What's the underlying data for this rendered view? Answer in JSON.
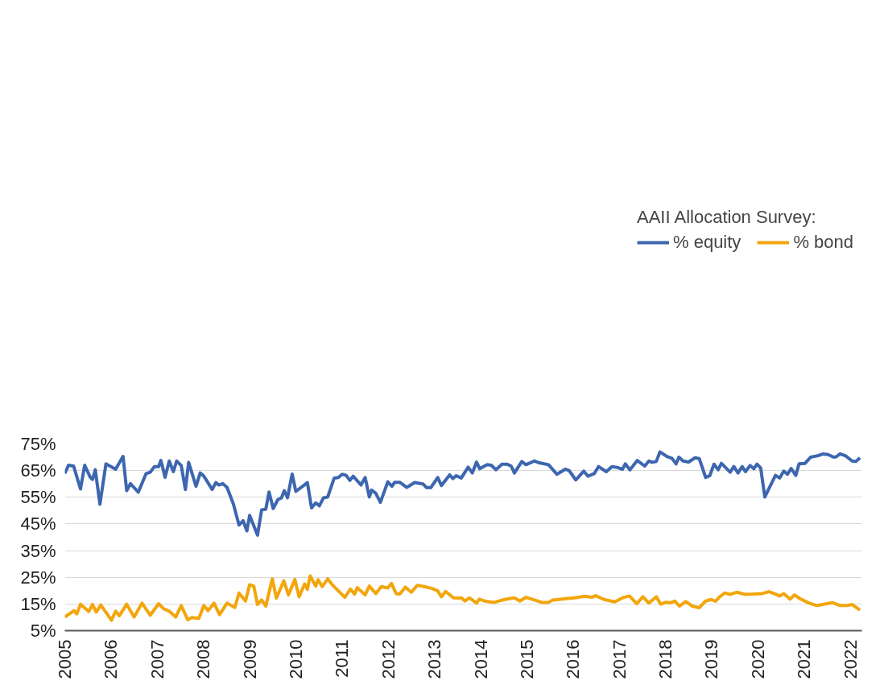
{
  "chart_data": {
    "type": "line",
    "legend_title": "AAII Allocation Survey:",
    "legend": "top",
    "grid": "y",
    "marker": "none",
    "line_style": "solid",
    "xlim": [
      2005,
      2022.25
    ],
    "xticks": [
      2005,
      2006,
      2007,
      2008,
      2009,
      2010,
      2011,
      2012,
      2013,
      2014,
      2015,
      2016,
      2017,
      2018,
      2019,
      2020,
      2021,
      2022
    ],
    "ylim": [
      5,
      75
    ],
    "yticks": [
      {
        "value": 5,
        "label": "5%"
      },
      {
        "value": 15,
        "label": "15%"
      },
      {
        "value": 25,
        "label": "25%"
      },
      {
        "value": 35,
        "label": "35%"
      },
      {
        "value": 45,
        "label": "45%"
      },
      {
        "value": 55,
        "label": "55%"
      },
      {
        "value": 65,
        "label": "65%"
      },
      {
        "value": 75,
        "label": "75%"
      }
    ],
    "series": [
      {
        "name": "% equity",
        "color": "#3d66b0",
        "x": [
          2005.0,
          2005.08,
          2005.19,
          2005.34,
          2005.43,
          2005.55,
          2005.6,
          2005.66,
          2005.76,
          2005.89,
          2006.1,
          2006.26,
          2006.34,
          2006.42,
          2006.59,
          2006.76,
          2006.85,
          2006.94,
          2007.03,
          2007.08,
          2007.17,
          2007.26,
          2007.35,
          2007.42,
          2007.52,
          2007.61,
          2007.68,
          2007.84,
          2007.93,
          2008.01,
          2008.19,
          2008.27,
          2008.33,
          2008.42,
          2008.51,
          2008.65,
          2008.77,
          2008.86,
          2008.94,
          2009.0,
          2009.17,
          2009.26,
          2009.35,
          2009.42,
          2009.51,
          2009.61,
          2009.69,
          2009.75,
          2009.82,
          2009.92,
          2010.0,
          2010.25,
          2010.34,
          2010.43,
          2010.51,
          2010.6,
          2010.69,
          2010.83,
          2010.92,
          2011.0,
          2011.09,
          2011.17,
          2011.24,
          2011.41,
          2011.5,
          2011.59,
          2011.64,
          2011.73,
          2011.83,
          2011.99,
          2012.08,
          2012.14,
          2012.25,
          2012.4,
          2012.57,
          2012.75,
          2012.83,
          2012.92,
          2013.07,
          2013.15,
          2013.33,
          2013.4,
          2013.47,
          2013.58,
          2013.73,
          2013.82,
          2013.91,
          2013.98,
          2014.14,
          2014.23,
          2014.33,
          2014.46,
          2014.57,
          2014.66,
          2014.73,
          2014.89,
          2014.98,
          2015.16,
          2015.27,
          2015.47,
          2015.65,
          2015.83,
          2015.91,
          2016.06,
          2016.23,
          2016.32,
          2016.46,
          2016.55,
          2016.72,
          2016.84,
          2016.95,
          2017.07,
          2017.13,
          2017.23,
          2017.39,
          2017.55,
          2017.64,
          2017.71,
          2017.8,
          2017.88,
          2018.03,
          2018.14,
          2018.23,
          2018.29,
          2018.38,
          2018.5,
          2018.64,
          2018.73,
          2018.87,
          2018.96,
          2019.05,
          2019.14,
          2019.21,
          2019.4,
          2019.48,
          2019.57,
          2019.66,
          2019.73,
          2019.83,
          2019.91,
          2019.98,
          2020.06,
          2020.15,
          2020.38,
          2020.47,
          2020.56,
          2020.64,
          2020.72,
          2020.82,
          2020.89,
          2021.02,
          2021.14,
          2021.28,
          2021.4,
          2021.52,
          2021.63,
          2021.69,
          2021.78,
          2021.9,
          2022.04,
          2022.12,
          2022.21
        ],
        "values": [
          63.9,
          67.0,
          66.7,
          58.1,
          67.0,
          62.5,
          61.7,
          65.3,
          52.4,
          67.5,
          65.5,
          70.3,
          57.5,
          60.1,
          56.9,
          63.9,
          64.4,
          66.5,
          66.5,
          68.8,
          62.5,
          68.6,
          64.6,
          68.6,
          66.9,
          57.9,
          68.1,
          59.1,
          64.1,
          62.9,
          57.9,
          60.5,
          59.6,
          60.1,
          58.7,
          52.4,
          44.6,
          46.2,
          42.4,
          48.2,
          40.8,
          50.3,
          50.5,
          57.0,
          50.8,
          54.1,
          54.8,
          57.5,
          54.8,
          63.7,
          57.2,
          60.5,
          51.0,
          52.9,
          51.8,
          54.8,
          55.1,
          62.2,
          62.4,
          63.6,
          63.2,
          61.3,
          62.9,
          59.6,
          62.4,
          55.1,
          57.7,
          56.5,
          53.1,
          60.8,
          59.1,
          60.6,
          60.6,
          58.7,
          60.5,
          60.0,
          58.6,
          58.6,
          62.4,
          59.4,
          63.4,
          62.0,
          63.1,
          62.2,
          66.3,
          64.1,
          68.2,
          65.7,
          67.2,
          67.0,
          65.3,
          67.4,
          67.4,
          66.7,
          64.1,
          68.4,
          67.2,
          68.6,
          67.9,
          67.2,
          63.6,
          65.5,
          65.1,
          61.5,
          64.8,
          62.9,
          63.9,
          66.5,
          64.6,
          66.5,
          66.2,
          65.5,
          67.5,
          65.3,
          68.8,
          66.7,
          68.6,
          68.1,
          68.4,
          72.0,
          70.3,
          69.6,
          67.5,
          70.0,
          68.6,
          68.2,
          69.8,
          69.5,
          62.4,
          63.1,
          67.4,
          65.3,
          67.7,
          64.4,
          66.5,
          64.1,
          66.5,
          64.6,
          66.9,
          65.7,
          67.4,
          66.0,
          55.1,
          63.2,
          62.2,
          64.8,
          63.6,
          65.8,
          63.2,
          67.5,
          67.7,
          70.0,
          70.5,
          71.2,
          71.0,
          70.1,
          70.1,
          71.3,
          70.5,
          68.6,
          68.4,
          69.8
        ]
      },
      {
        "name": "% bond",
        "color": "#f2a60c",
        "x": [
          2005.0,
          2005.2,
          2005.26,
          2005.34,
          2005.52,
          2005.6,
          2005.68,
          2005.78,
          2006.01,
          2006.1,
          2006.18,
          2006.34,
          2006.5,
          2006.67,
          2006.85,
          2007.03,
          2007.14,
          2007.26,
          2007.4,
          2007.52,
          2007.66,
          2007.75,
          2007.9,
          2008.01,
          2008.1,
          2008.23,
          2008.35,
          2008.51,
          2008.68,
          2008.77,
          2008.91,
          2009.0,
          2009.09,
          2009.17,
          2009.26,
          2009.35,
          2009.49,
          2009.58,
          2009.74,
          2009.84,
          2009.98,
          2010.07,
          2010.19,
          2010.25,
          2010.31,
          2010.43,
          2010.48,
          2010.57,
          2010.69,
          2010.8,
          2011.06,
          2011.18,
          2011.27,
          2011.33,
          2011.5,
          2011.59,
          2011.73,
          2011.85,
          2011.99,
          2012.07,
          2012.17,
          2012.25,
          2012.37,
          2012.5,
          2012.63,
          2012.78,
          2012.95,
          2013.07,
          2013.15,
          2013.24,
          2013.41,
          2013.59,
          2013.66,
          2013.76,
          2013.91,
          2013.97,
          2014.11,
          2014.29,
          2014.52,
          2014.73,
          2014.85,
          2014.98,
          2015.16,
          2015.34,
          2015.47,
          2015.56,
          2015.85,
          2016.03,
          2016.26,
          2016.4,
          2016.49,
          2016.67,
          2016.9,
          2017.1,
          2017.22,
          2017.38,
          2017.51,
          2017.64,
          2017.8,
          2017.9,
          2018.0,
          2018.12,
          2018.2,
          2018.3,
          2018.44,
          2018.58,
          2018.73,
          2018.87,
          2018.99,
          2019.08,
          2019.16,
          2019.28,
          2019.4,
          2019.54,
          2019.72,
          2019.89,
          2020.09,
          2020.24,
          2020.38,
          2020.47,
          2020.56,
          2020.7,
          2020.79,
          2020.91,
          2021.11,
          2021.28,
          2021.46,
          2021.61,
          2021.78,
          2021.92,
          2022.04,
          2022.21
        ],
        "values": [
          10.1,
          12.5,
          11.3,
          14.9,
          12.2,
          14.8,
          12.0,
          14.6,
          8.9,
          12.3,
          10.6,
          14.9,
          10.1,
          15.3,
          10.8,
          15.1,
          13.2,
          12.3,
          10.1,
          14.4,
          9.1,
          9.9,
          9.6,
          14.4,
          12.5,
          15.3,
          11.0,
          15.3,
          13.7,
          19.1,
          16.1,
          22.2,
          21.7,
          14.8,
          16.5,
          14.2,
          24.4,
          17.2,
          23.7,
          18.4,
          24.2,
          17.7,
          22.5,
          20.5,
          25.5,
          21.7,
          24.1,
          21.5,
          24.4,
          22.0,
          17.5,
          20.6,
          18.7,
          21.1,
          18.4,
          21.7,
          18.9,
          21.5,
          21.0,
          22.7,
          18.9,
          18.7,
          21.3,
          19.4,
          22.0,
          21.5,
          20.8,
          19.9,
          17.7,
          19.7,
          17.3,
          17.2,
          16.1,
          17.3,
          15.3,
          16.8,
          16.0,
          15.6,
          16.7,
          17.3,
          16.1,
          17.5,
          16.5,
          15.5,
          15.6,
          16.5,
          17.0,
          17.3,
          17.9,
          17.5,
          18.1,
          16.7,
          15.8,
          17.5,
          18.0,
          15.1,
          17.7,
          15.3,
          17.7,
          14.9,
          15.6,
          15.5,
          16.1,
          14.2,
          15.9,
          14.2,
          13.6,
          16.1,
          16.7,
          16.0,
          17.5,
          19.1,
          18.6,
          19.4,
          18.6,
          18.7,
          18.9,
          19.6,
          18.7,
          18.0,
          18.9,
          16.8,
          18.4,
          17.0,
          15.3,
          14.4,
          15.0,
          15.5,
          14.4,
          14.4,
          14.8,
          12.7
        ]
      }
    ]
  }
}
